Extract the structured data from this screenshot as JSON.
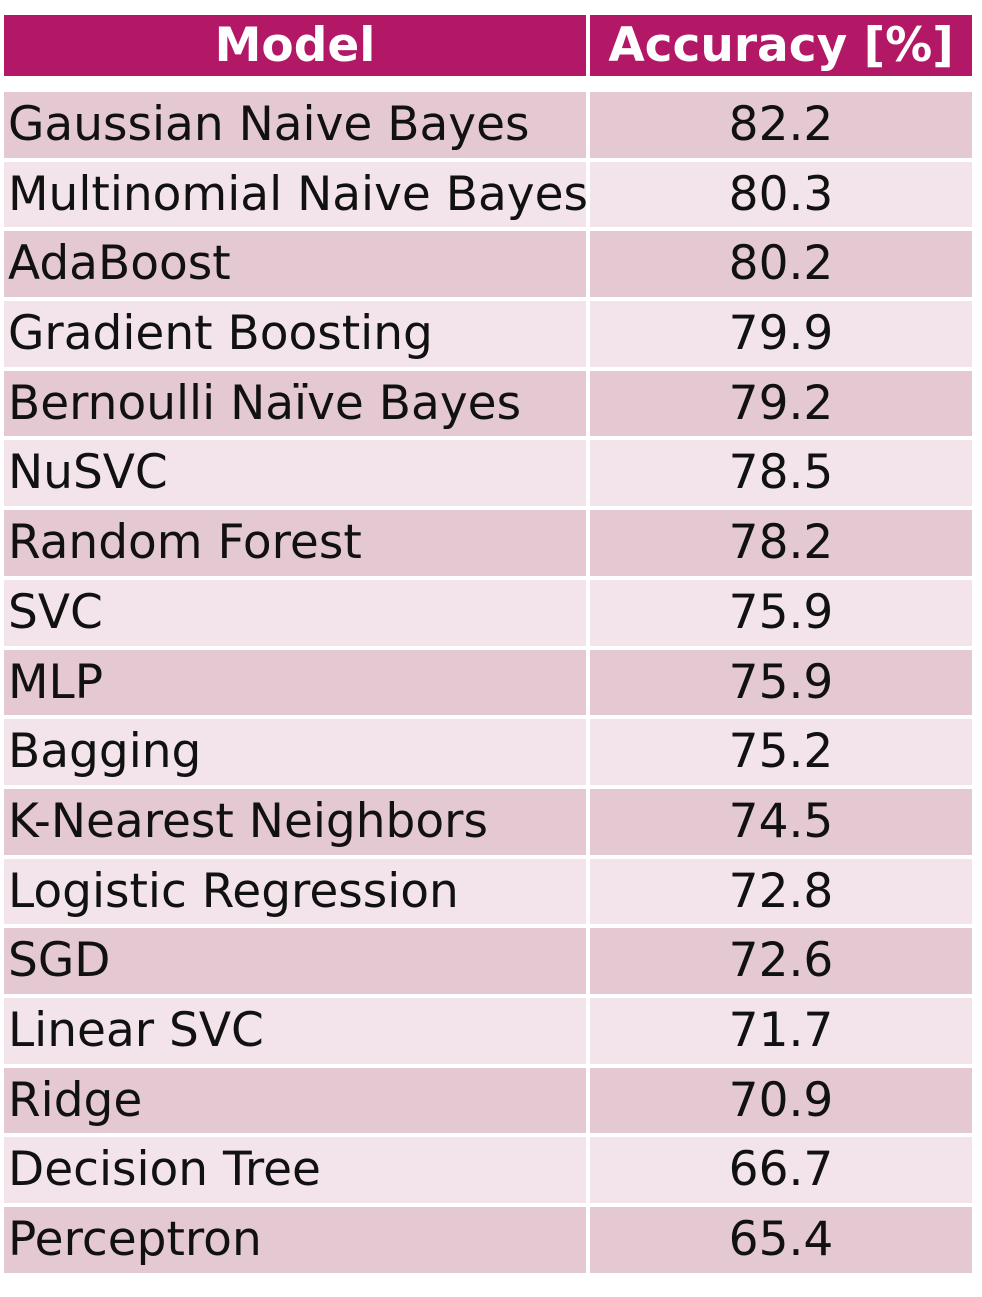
{
  "table": {
    "headers": {
      "model": "Model",
      "accuracy": "Accuracy [%]"
    },
    "rows": [
      {
        "model": "Gaussian Naive Bayes",
        "accuracy": "82.2"
      },
      {
        "model": "Multinomial Naive Bayes",
        "accuracy": "80.3"
      },
      {
        "model": "AdaBoost",
        "accuracy": "80.2"
      },
      {
        "model": "Gradient Boosting",
        "accuracy": "79.9"
      },
      {
        "model": "Bernoulli Naïve Bayes",
        "accuracy": "79.2"
      },
      {
        "model": "NuSVC",
        "accuracy": "78.5"
      },
      {
        "model": "Random Forest",
        "accuracy": "78.2"
      },
      {
        "model": "SVC",
        "accuracy": "75.9"
      },
      {
        "model": "MLP",
        "accuracy": "75.9"
      },
      {
        "model": "Bagging",
        "accuracy": "75.2"
      },
      {
        "model": "K-Nearest Neighbors",
        "accuracy": "74.5"
      },
      {
        "model": "Logistic Regression",
        "accuracy": "72.8"
      },
      {
        "model": "SGD",
        "accuracy": "72.6"
      },
      {
        "model": "Linear SVC",
        "accuracy": "71.7"
      },
      {
        "model": "Ridge",
        "accuracy": "70.9"
      },
      {
        "model": "Decision Tree",
        "accuracy": "66.7"
      },
      {
        "model": "Perceptron",
        "accuracy": "65.4"
      }
    ]
  },
  "colors": {
    "header_bg": "#b31866",
    "header_text": "#ffffff",
    "row_odd": "#e5c9d2",
    "row_even": "#f2e4ea"
  }
}
